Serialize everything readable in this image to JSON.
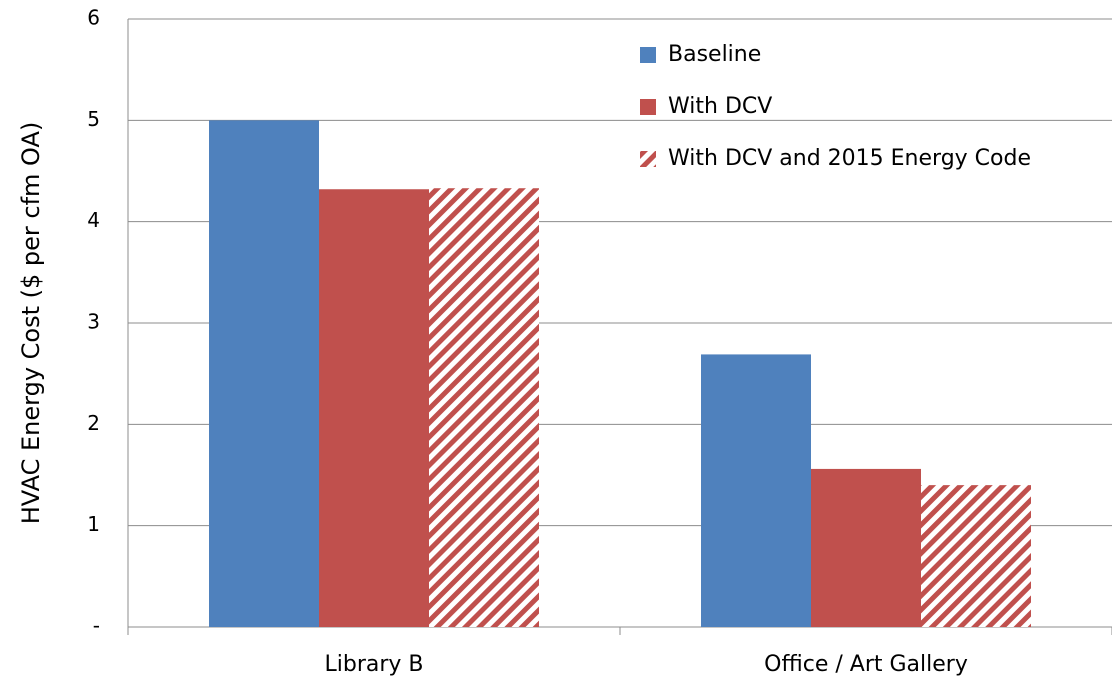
{
  "chart_data": {
    "type": "bar",
    "y_label": "HVAC Energy Cost ($ per cfm OA)",
    "categories": [
      "Library B",
      "Office / Art Gallery"
    ],
    "series": [
      {
        "name": "Baseline",
        "color": "#4f81bd",
        "values": [
          5.0,
          2.69
        ]
      },
      {
        "name": "With DCV",
        "color": "#c0504d",
        "values": [
          4.32,
          1.56
        ]
      },
      {
        "name": "With DCV and 2015 Energy Code",
        "color": "#c0504d",
        "pattern": "hatch",
        "values": [
          4.33,
          1.4
        ]
      }
    ],
    "ylim": [
      0,
      6
    ],
    "yticks": [
      {
        "value": 0,
        "label": "-"
      },
      1,
      2,
      3,
      4,
      5,
      6
    ],
    "grid": true,
    "legend": "top-right"
  }
}
